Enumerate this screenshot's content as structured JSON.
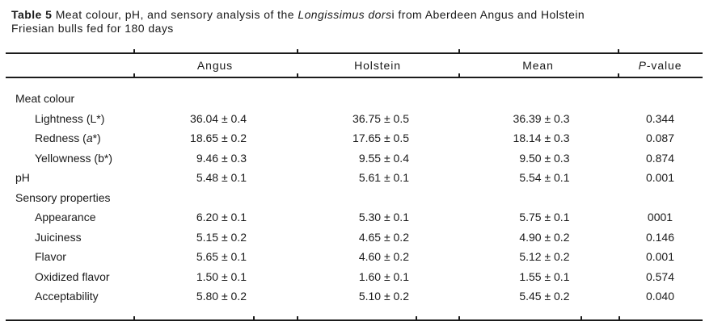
{
  "caption": {
    "label": "Table 5",
    "text_after_label": " Meat colour, pH, and sensory analysis of the ",
    "species_italic": "Longissimus dors",
    "line1_rest": "i from Aberdeen Angus and Holstein",
    "line2": "Friesian bulls fed for 180 days"
  },
  "table": {
    "header": {
      "angus": "Angus",
      "holstein": "Holstein",
      "mean": "Mean",
      "pvalue_italic": "P",
      "pvalue_rest": "-value"
    },
    "rows": [
      {
        "kind": "section",
        "indent": false,
        "label_pre": "Meat colour",
        "label_italic": "",
        "label_post": "",
        "angus": "",
        "holstein": "",
        "mean": "",
        "p": ""
      },
      {
        "kind": "data",
        "indent": true,
        "label_pre": "Lightness (L*)",
        "label_italic": "",
        "label_post": "",
        "angus": "36.04 ± 0.4",
        "holstein": "36.75 ± 0.5",
        "mean": "36.39 ± 0.3",
        "p": "0.344"
      },
      {
        "kind": "data",
        "indent": true,
        "label_pre": "Redness (",
        "label_italic": "a",
        "label_post": "*)",
        "angus": "18.65 ± 0.2",
        "holstein": "17.65 ± 0.5",
        "mean": "18.14 ± 0.3",
        "p": "0.087"
      },
      {
        "kind": "data",
        "indent": true,
        "label_pre": "Yellowness (b*)",
        "label_italic": "",
        "label_post": "",
        "angus": "9.46 ± 0.3",
        "holstein": "9.55 ± 0.4",
        "mean": "9.50 ± 0.3",
        "p": "0.874"
      },
      {
        "kind": "data",
        "indent": false,
        "label_pre": "pH",
        "label_italic": "",
        "label_post": "",
        "angus": "5.48 ± 0.1",
        "holstein": "5.61 ± 0.1",
        "mean": "5.54 ± 0.1",
        "p": "0.001"
      },
      {
        "kind": "section",
        "indent": false,
        "label_pre": "Sensory properties",
        "label_italic": "",
        "label_post": "",
        "angus": "",
        "holstein": "",
        "mean": "",
        "p": ""
      },
      {
        "kind": "data",
        "indent": true,
        "label_pre": "Appearance",
        "label_italic": "",
        "label_post": "",
        "angus": "6.20 ± 0.1",
        "holstein": "5.30 ± 0.1",
        "mean": "5.75 ± 0.1",
        "p": "0001"
      },
      {
        "kind": "data",
        "indent": true,
        "label_pre": "Juiciness",
        "label_italic": "",
        "label_post": "",
        "angus": "5.15 ± 0.2",
        "holstein": "4.65 ± 0.2",
        "mean": "4.90 ± 0.2",
        "p": "0.146"
      },
      {
        "kind": "data",
        "indent": true,
        "label_pre": "Flavor",
        "label_italic": "",
        "label_post": "",
        "angus": "5.65 ± 0.1",
        "holstein": "4.60 ± 0.2",
        "mean": "5.12 ± 0.2",
        "p": "0.001"
      },
      {
        "kind": "data",
        "indent": true,
        "label_pre": "Oxidized flavor",
        "label_italic": "",
        "label_post": "",
        "angus": "1.50 ± 0.1",
        "holstein": "1.60 ± 0.1",
        "mean": "1.55 ± 0.1",
        "p": "0.574"
      },
      {
        "kind": "data",
        "indent": true,
        "label_pre": "Acceptability",
        "label_italic": "",
        "label_post": "",
        "angus": "5.80 ± 0.2",
        "holstein": "5.10 ± 0.2",
        "mean": "5.45 ± 0.2",
        "p": "0.040"
      }
    ]
  },
  "colors": {
    "background": "#ffffff",
    "text": "#1a1a1a",
    "rule": "#1b1b1b"
  }
}
